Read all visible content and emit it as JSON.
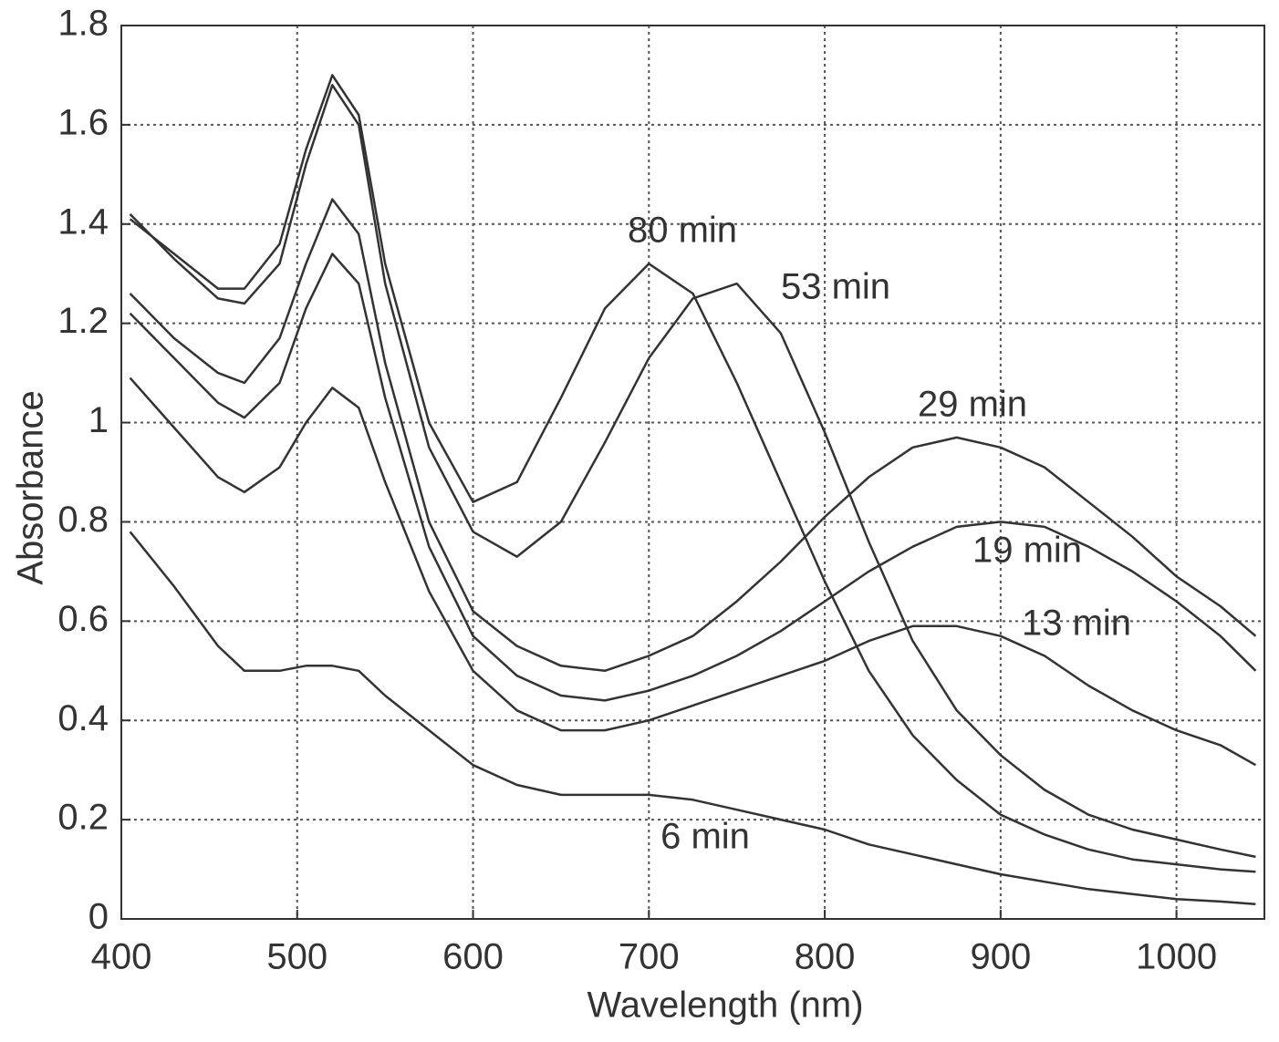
{
  "chart_data": {
    "type": "line",
    "x_label": "Wavelength (nm)",
    "y_label": "Absorbance",
    "x": [
      405,
      430,
      455,
      470,
      490,
      505,
      520,
      535,
      550,
      575,
      600,
      625,
      650,
      675,
      700,
      725,
      750,
      775,
      800,
      825,
      850,
      875,
      900,
      925,
      950,
      975,
      1000,
      1025,
      1045
    ],
    "series": [
      {
        "name": "80 min",
        "color": "#333333",
        "values": [
          1.41,
          1.34,
          1.27,
          1.27,
          1.36,
          1.55,
          1.7,
          1.62,
          1.32,
          1.0,
          0.84,
          0.88,
          1.05,
          1.23,
          1.32,
          1.26,
          1.08,
          0.88,
          0.68,
          0.5,
          0.37,
          0.28,
          0.21,
          0.17,
          0.14,
          0.12,
          0.11,
          0.1,
          0.095
        ]
      },
      {
        "name": "53 min",
        "color": "#333333",
        "values": [
          1.42,
          1.33,
          1.25,
          1.24,
          1.32,
          1.52,
          1.68,
          1.6,
          1.28,
          0.95,
          0.78,
          0.73,
          0.8,
          0.96,
          1.13,
          1.25,
          1.28,
          1.18,
          0.98,
          0.76,
          0.56,
          0.42,
          0.33,
          0.26,
          0.21,
          0.18,
          0.16,
          0.14,
          0.125
        ]
      },
      {
        "name": "29 min",
        "color": "#333333",
        "values": [
          1.26,
          1.17,
          1.1,
          1.08,
          1.17,
          1.32,
          1.45,
          1.38,
          1.12,
          0.8,
          0.62,
          0.55,
          0.51,
          0.5,
          0.53,
          0.57,
          0.64,
          0.72,
          0.81,
          0.89,
          0.95,
          0.97,
          0.95,
          0.91,
          0.84,
          0.77,
          0.69,
          0.63,
          0.57
        ]
      },
      {
        "name": "19 min",
        "color": "#333333",
        "values": [
          1.22,
          1.13,
          1.04,
          1.01,
          1.08,
          1.23,
          1.34,
          1.28,
          1.05,
          0.75,
          0.57,
          0.49,
          0.45,
          0.44,
          0.46,
          0.49,
          0.53,
          0.58,
          0.64,
          0.7,
          0.75,
          0.79,
          0.8,
          0.79,
          0.75,
          0.7,
          0.64,
          0.57,
          0.5
        ]
      },
      {
        "name": "13 min",
        "color": "#333333",
        "values": [
          1.09,
          0.99,
          0.89,
          0.86,
          0.91,
          1.0,
          1.07,
          1.03,
          0.88,
          0.66,
          0.5,
          0.42,
          0.38,
          0.38,
          0.4,
          0.43,
          0.46,
          0.49,
          0.52,
          0.56,
          0.59,
          0.59,
          0.57,
          0.53,
          0.47,
          0.42,
          0.38,
          0.35,
          0.31
        ]
      },
      {
        "name": "6 min",
        "color": "#333333",
        "values": [
          0.78,
          0.67,
          0.55,
          0.5,
          0.5,
          0.51,
          0.51,
          0.5,
          0.45,
          0.38,
          0.31,
          0.27,
          0.25,
          0.25,
          0.25,
          0.24,
          0.22,
          0.2,
          0.18,
          0.15,
          0.13,
          0.11,
          0.09,
          0.075,
          0.06,
          0.05,
          0.04,
          0.035,
          0.03
        ]
      }
    ],
    "xlim": [
      400,
      1050
    ],
    "ylim": [
      0,
      1.8
    ],
    "xticks": [
      400,
      500,
      600,
      700,
      800,
      900,
      1000
    ],
    "yticks": [
      0,
      0.2,
      0.4,
      0.6,
      0.8,
      1,
      1.2,
      1.4,
      1.6,
      1.8
    ],
    "grid": true
  }
}
